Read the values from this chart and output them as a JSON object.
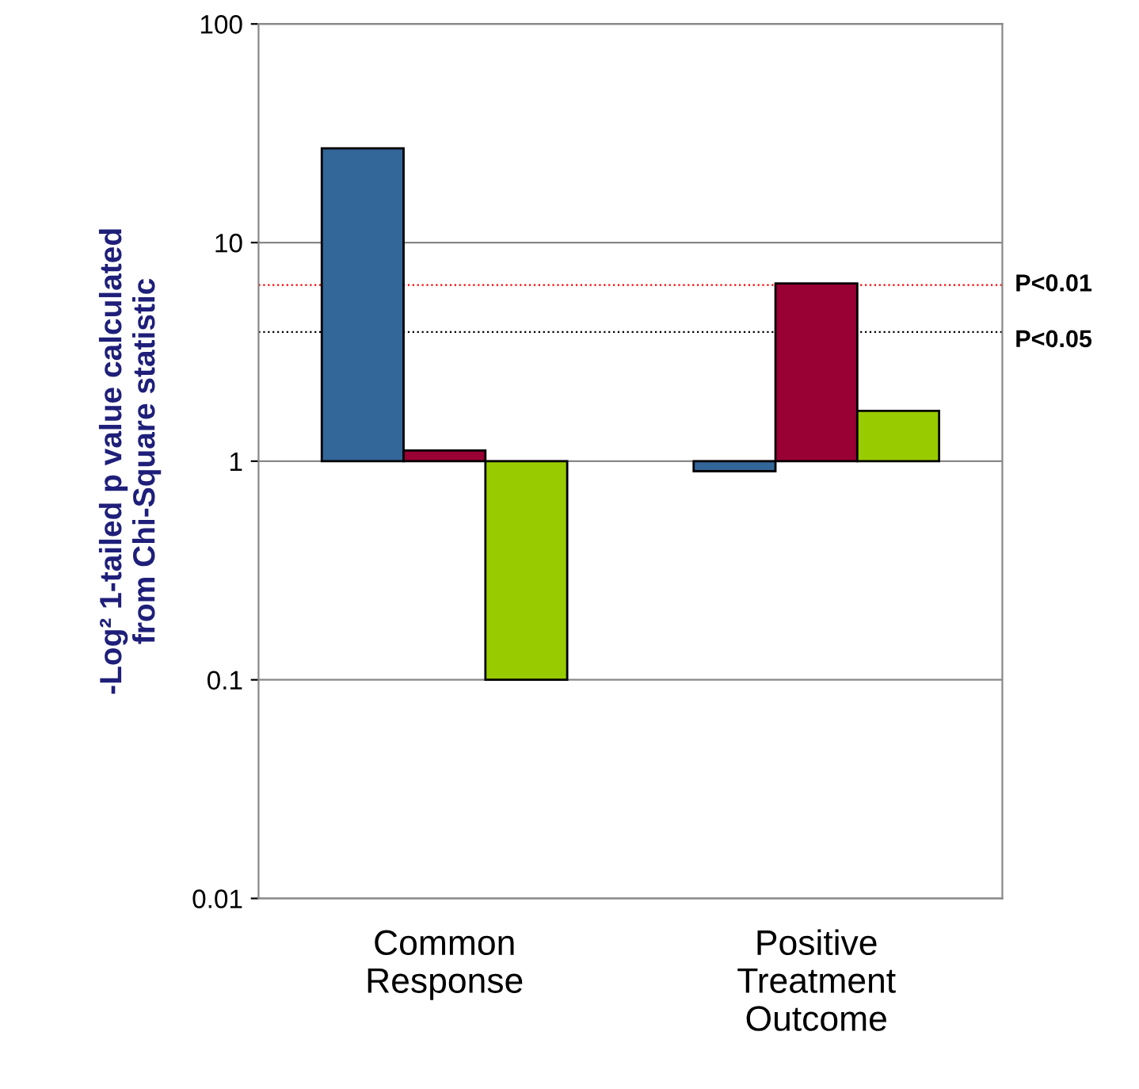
{
  "chart_data": {
    "type": "bar",
    "ylabel": "-Log² 1-tailed p value calculated\nfrom Chi-Square statistic",
    "categories": [
      "Common\nResponse",
      "Positive\nTreatment\nOutcome"
    ],
    "log": true,
    "ylim": [
      0.01,
      100
    ],
    "yticks": [
      0.01,
      0.1,
      1,
      10,
      100
    ],
    "grid": "y",
    "legend": false,
    "series": [
      {
        "color": "#336699",
        "base": [
          1,
          1
        ],
        "values": [
          26,
          -0.1
        ]
      },
      {
        "color": "#990033",
        "base": [
          1,
          1
        ],
        "values": [
          0.12,
          5.5
        ]
      },
      {
        "color": "#99cc00",
        "base": [
          1,
          1
        ],
        "values": [
          -0.9,
          0.7
        ]
      }
    ],
    "ref_lines": [
      {
        "axis": "y",
        "value": 6.4,
        "label": "P<0.01",
        "color": "#ff0000",
        "line_style": "dotted"
      },
      {
        "axis": "y",
        "value": 3.9,
        "label": "P<0.05",
        "color": "#000000",
        "line_style": "dotted"
      }
    ]
  }
}
